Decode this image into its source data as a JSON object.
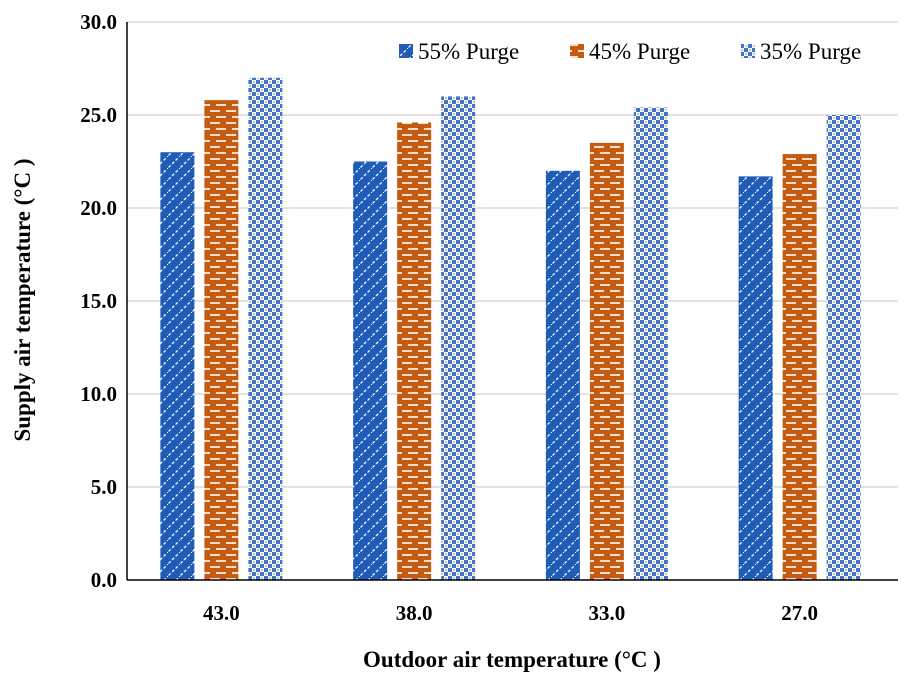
{
  "chart_data": {
    "type": "bar",
    "title": "",
    "xlabel": "Outdoor air temperature (°C )",
    "ylabel": "Supply air temperature (°C )",
    "categories": [
      "43.0",
      "38.0",
      "33.0",
      "27.0"
    ],
    "ylim": [
      0,
      30
    ],
    "yticks": [
      "0.0",
      "5.0",
      "10.0",
      "15.0",
      "20.0",
      "25.0",
      "30.0"
    ],
    "grid": true,
    "legend_position": "top-right",
    "series": [
      {
        "name": "55% Purge",
        "values": [
          23.0,
          22.5,
          22.0,
          21.7
        ],
        "color": "#1f5cb8",
        "pattern": "diagonal-dashed"
      },
      {
        "name": "45% Purge",
        "values": [
          25.8,
          24.6,
          23.5,
          22.9
        ],
        "color": "#c55a11",
        "pattern": "horizontal-brick"
      },
      {
        "name": "35% Purge",
        "values": [
          27.0,
          26.0,
          25.4,
          25.0
        ],
        "color": "#4472c4",
        "pattern": "checker-dots"
      }
    ]
  }
}
